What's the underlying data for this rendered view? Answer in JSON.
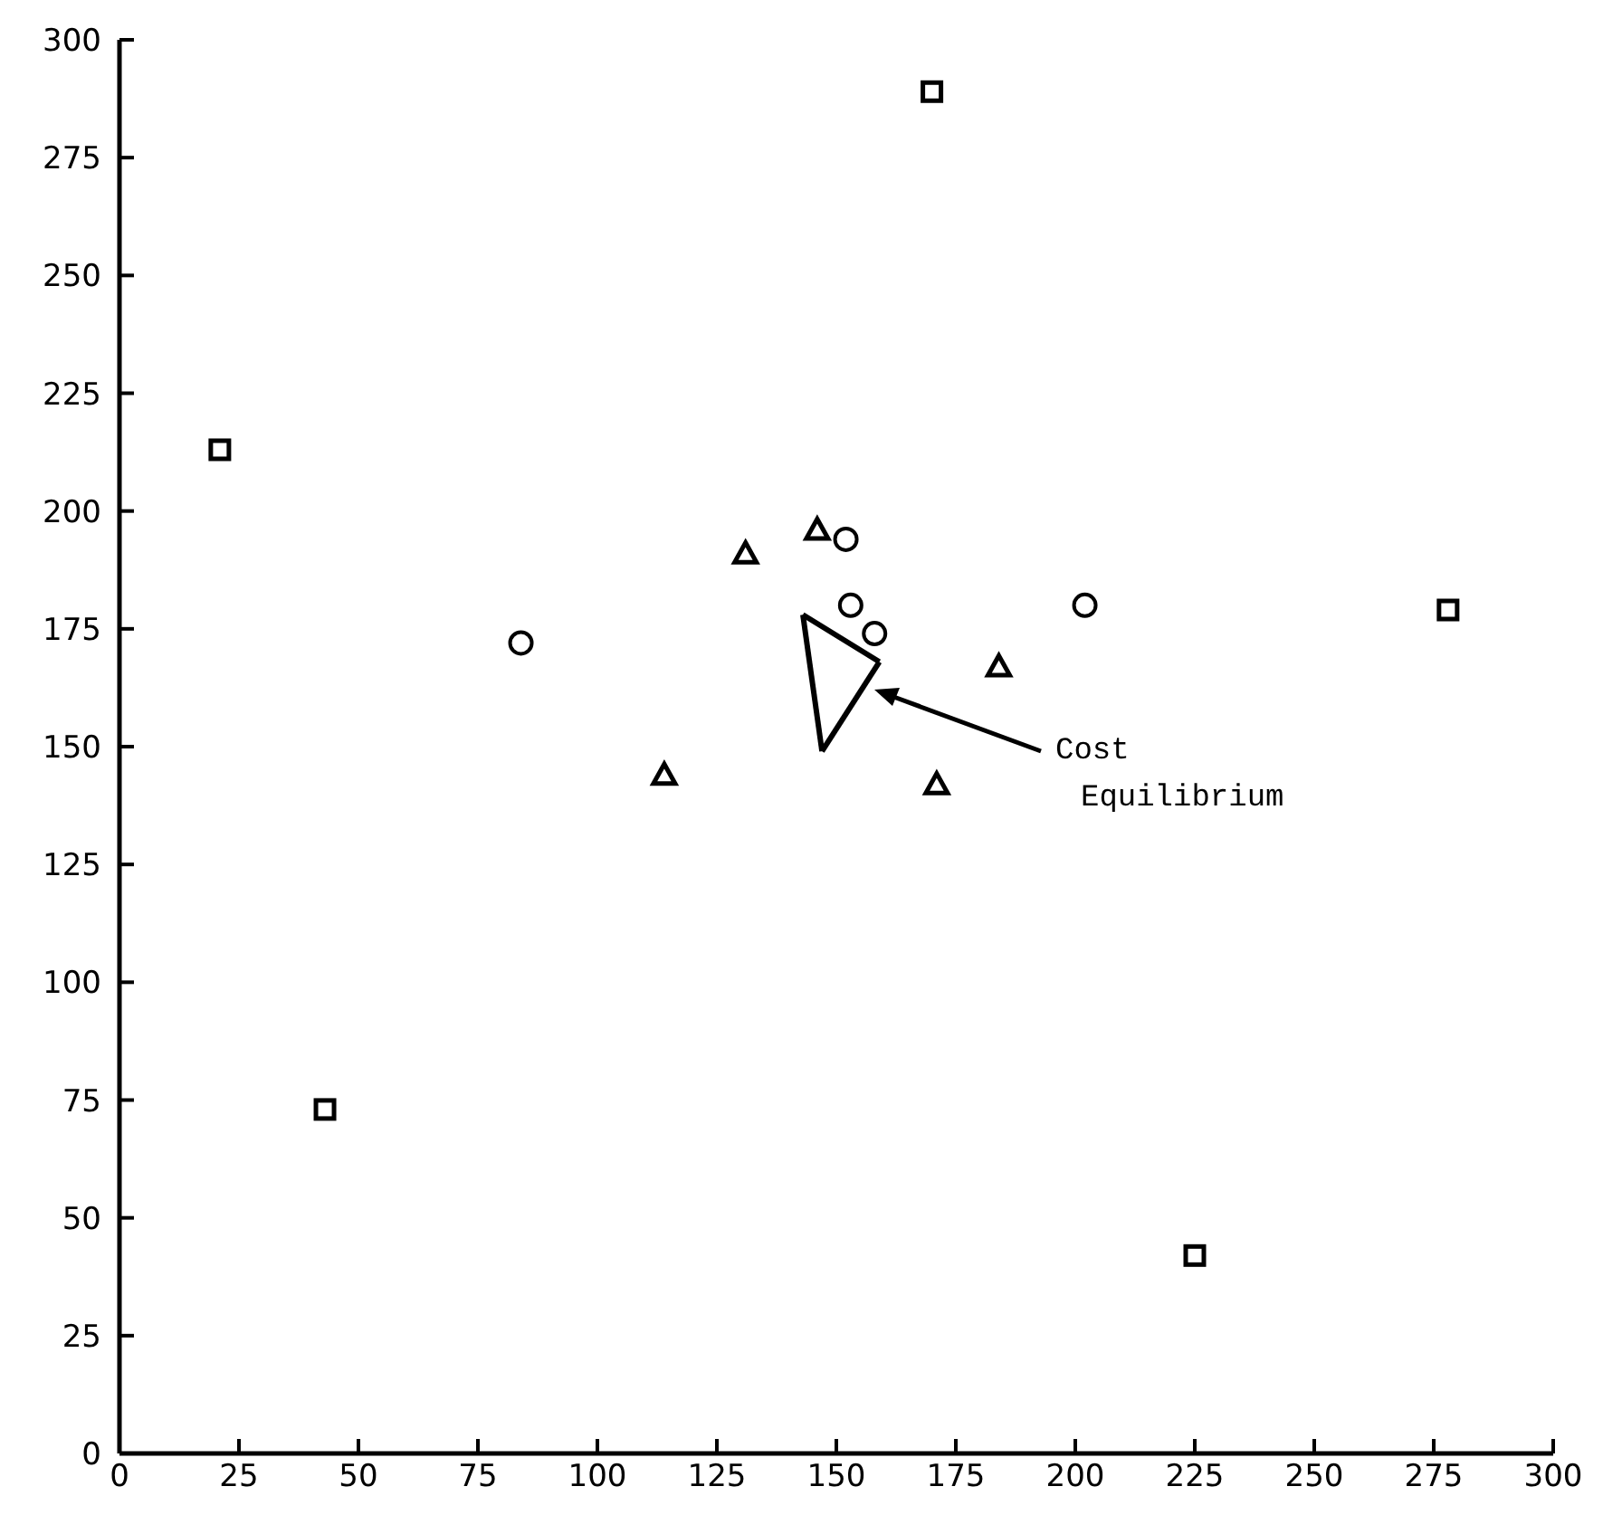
{
  "chart_data": {
    "type": "scatter",
    "series": [
      {
        "color": "#000000",
        "marker": "square",
        "x": [
          21,
          43,
          170,
          225,
          278
        ],
        "values": [
          213,
          73,
          289,
          42,
          179
        ]
      },
      {
        "color": "#000000",
        "marker": "triangle",
        "x": [
          114,
          131,
          146,
          171,
          184
        ],
        "values": [
          144,
          191,
          196,
          142,
          167
        ]
      },
      {
        "color": "#000000",
        "marker": "circle",
        "x": [
          84,
          152,
          153,
          158,
          202
        ],
        "values": [
          172,
          194,
          180,
          174,
          180
        ]
      },
      {
        "type": "line",
        "color": "#000000",
        "marker": "none",
        "x": [
          143,
          159
        ],
        "values": [
          178,
          168
        ]
      },
      {
        "type": "line",
        "color": "#000000",
        "marker": "none",
        "x": [
          147,
          159
        ],
        "values": [
          149,
          168
        ]
      },
      {
        "type": "line",
        "color": "#000000",
        "marker": "none",
        "x": [
          143,
          147
        ],
        "values": [
          178,
          149
        ]
      }
    ],
    "annotations": [
      "Cost Equilibrium"
    ],
    "xlim": [
      0,
      300
    ],
    "xticks": [
      0,
      25,
      50,
      75,
      100,
      125,
      150,
      175,
      200,
      225,
      250,
      275,
      300
    ],
    "ylim": [
      0,
      300
    ],
    "yticks": [
      0,
      25,
      50,
      75,
      100,
      125,
      150,
      175,
      200,
      225,
      250,
      275,
      300
    ],
    "grid": false
  }
}
